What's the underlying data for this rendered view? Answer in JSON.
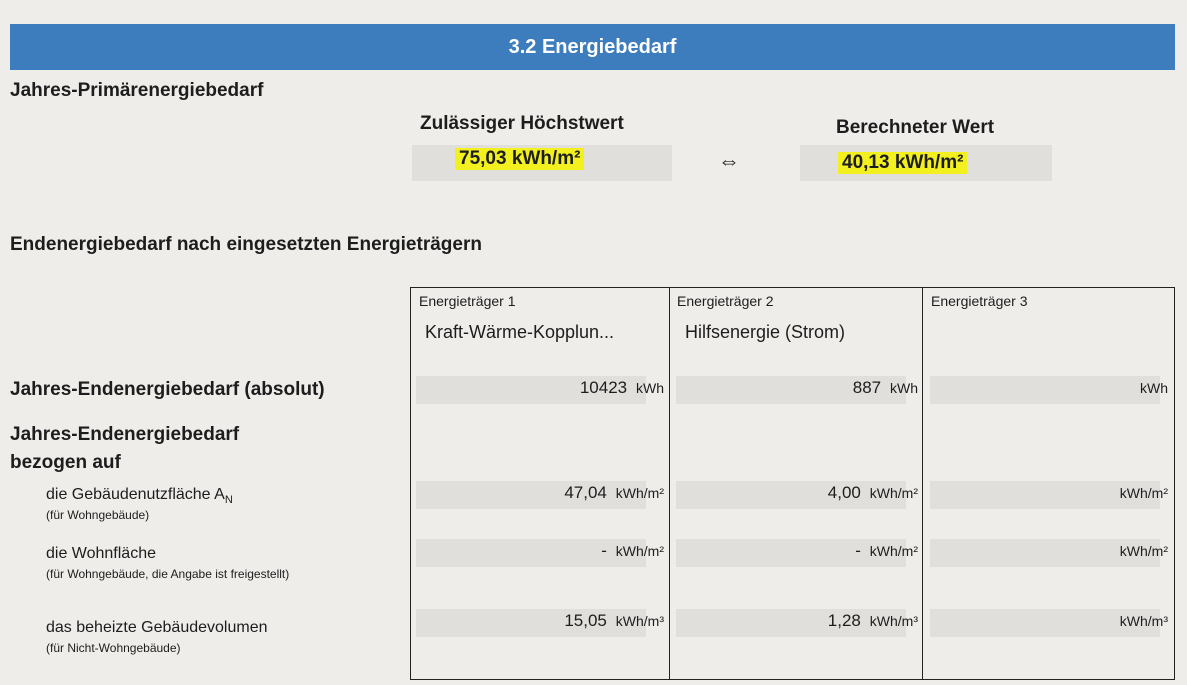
{
  "section_title": "3.2 Energiebedarf",
  "primary": {
    "heading": "Jahres-Primärenergiebedarf",
    "max_label": "Zulässiger Höchstwert",
    "max_value": "75,03 kWh/m²",
    "compare_symbol": "⇔",
    "calc_label": "Berechneter Wert",
    "calc_value": "40,13 kWh/m²",
    "highlight_color": "#f2f01e"
  },
  "end": {
    "heading": "Endenergiebedarf nach eingesetzten Energieträgern",
    "carriers": [
      {
        "label": "Energieträger 1",
        "name": "Kraft-Wärme-Kopplun..."
      },
      {
        "label": "Energieträger 2",
        "name": "Hilfsenergie (Strom)"
      },
      {
        "label": "Energieträger 3",
        "name": ""
      }
    ],
    "abs_label": "Jahres-Endenergiebedarf (absolut)",
    "abs": [
      {
        "v": "10423",
        "u": "kWh"
      },
      {
        "v": "887",
        "u": "kWh"
      },
      {
        "v": "",
        "u": "kWh"
      }
    ],
    "rel_label1": "Jahres-Endenergiebedarf",
    "rel_label2": "bezogen auf",
    "rows": [
      {
        "label": "die Gebäudenutzfläche A",
        "sub": "N",
        "note": "(für Wohngebäude)",
        "cells": [
          {
            "v": "47,04",
            "u": "kWh/m²"
          },
          {
            "v": "4,00",
            "u": "kWh/m²"
          },
          {
            "v": "",
            "u": "kWh/m²"
          }
        ]
      },
      {
        "label": "die Wohnfläche",
        "sub": "",
        "note": "(für Wohngebäude, die Angabe ist freigestellt)",
        "cells": [
          {
            "v": "-",
            "u": "kWh/m²"
          },
          {
            "v": "-",
            "u": "kWh/m²"
          },
          {
            "v": "",
            "u": "kWh/m²"
          }
        ]
      },
      {
        "label": "das beheizte Gebäudevolumen",
        "sub": "",
        "note": "(für Nicht-Wohngebäude)",
        "cells": [
          {
            "v": "15,05",
            "u": "kWh/m³"
          },
          {
            "v": "1,28",
            "u": "kWh/m³"
          },
          {
            "v": "",
            "u": "kWh/m³"
          }
        ]
      }
    ]
  }
}
